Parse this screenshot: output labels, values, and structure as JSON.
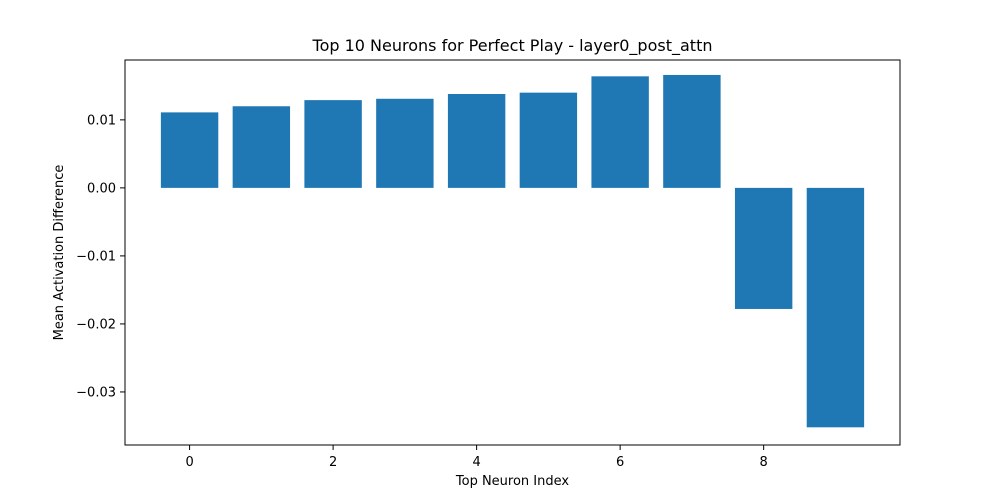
{
  "chart_data": {
    "type": "bar",
    "title": "Top 10 Neurons for Perfect Play - layer0_post_attn",
    "xlabel": "Top Neuron Index",
    "ylabel": "Mean Activation Difference",
    "categories": [
      0,
      1,
      2,
      3,
      4,
      5,
      6,
      7,
      8,
      9
    ],
    "values": [
      0.0111,
      0.012,
      0.0129,
      0.0131,
      0.0138,
      0.014,
      0.0164,
      0.0166,
      -0.0178,
      -0.0352
    ],
    "xlim": [
      -0.9,
      9.9
    ],
    "ylim": [
      -0.0378,
      0.0188
    ],
    "xticks": [
      0,
      2,
      4,
      6,
      8
    ],
    "yticks": [
      0.01,
      0.0,
      -0.01,
      -0.02,
      -0.03
    ],
    "ytick_labels": [
      "0.01",
      "0.00",
      "−0.01",
      "−0.02",
      "−0.03"
    ],
    "bar_color": "#1f77b4",
    "grid": false,
    "legend": false
  }
}
